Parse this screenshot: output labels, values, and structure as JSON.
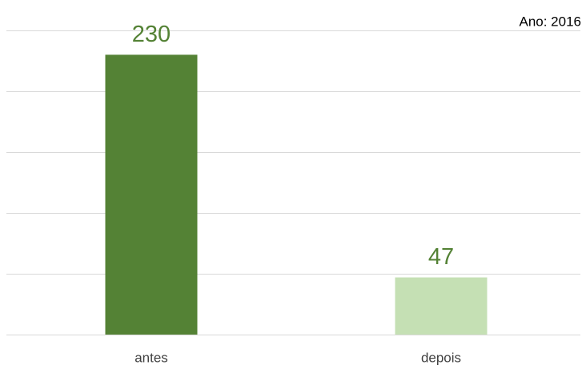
{
  "chart_data": {
    "type": "bar",
    "annotation": "Ano: 2016",
    "categories": [
      "antes",
      "depois"
    ],
    "values": [
      230,
      47
    ],
    "colors": [
      "#548235",
      "#c5e0b4"
    ],
    "label_color": "#548235",
    "ylim": [
      0,
      250
    ],
    "yticks": [
      0,
      50,
      100,
      150,
      200,
      250
    ],
    "grid": true
  }
}
